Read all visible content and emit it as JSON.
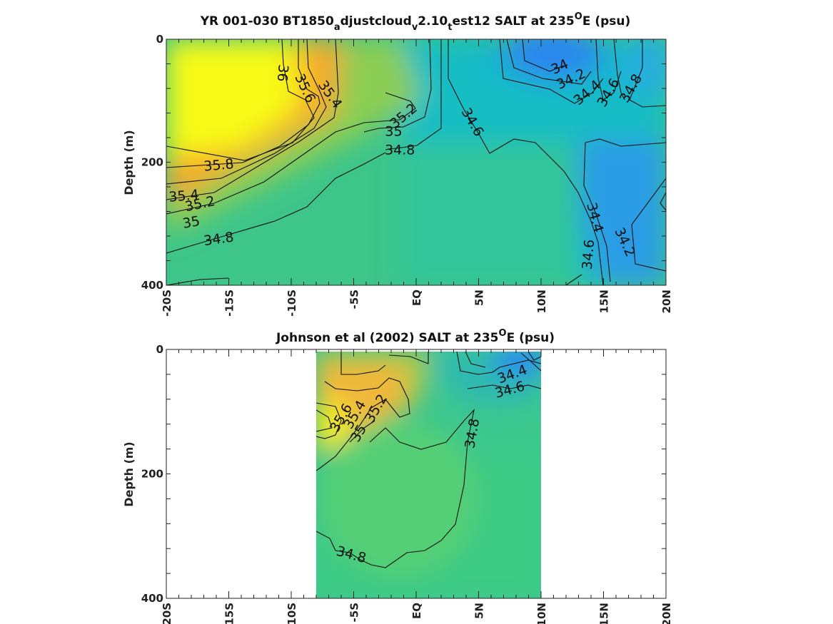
{
  "chart_data": [
    {
      "type": "contour",
      "title": {
        "prefix": "YR 001-030 BT1850",
        "sub1": "a",
        "mid1": "djustcloud",
        "sub2": "v",
        "mid2": "2.10",
        "sub3": "t",
        "mid3": "est12 SALT at 235",
        "sup": "O",
        "suffix": "E (psu)"
      },
      "ylabel": "Depth (m)",
      "xlim": [
        -20,
        20
      ],
      "ylim": [
        400,
        0
      ],
      "x_ticks": [
        -20,
        -15,
        -10,
        -5,
        0,
        5,
        10,
        15,
        20
      ],
      "x_tick_labels": [
        "-20S",
        "-15S",
        "-10S",
        "-5S",
        "EQ",
        "5N",
        "10N",
        "15N",
        "20N"
      ],
      "y_ticks": [
        0,
        200,
        400
      ],
      "y_tick_labels": [
        "0",
        "200",
        "400"
      ],
      "data_extent": [
        -20,
        20
      ],
      "contour_labels": [
        {
          "text": "36",
          "x": -10.7,
          "y": 55,
          "angle": 95
        },
        {
          "text": "35.6",
          "x": -8.9,
          "y": 80,
          "angle": 65
        },
        {
          "text": "35.4",
          "x": -6.9,
          "y": 90,
          "angle": 55
        },
        {
          "text": "35.2",
          "x": -1.0,
          "y": 125,
          "angle": -40
        },
        {
          "text": "35",
          "x": -1.8,
          "y": 150,
          "angle": 0
        },
        {
          "text": "34.8",
          "x": -1.3,
          "y": 180,
          "angle": 0
        },
        {
          "text": "34.6",
          "x": 4.5,
          "y": 135,
          "angle": 60
        },
        {
          "text": "34",
          "x": 11.5,
          "y": 45,
          "angle": -25
        },
        {
          "text": "34.2",
          "x": 12.4,
          "y": 65,
          "angle": -25
        },
        {
          "text": "34.4",
          "x": 13.7,
          "y": 87,
          "angle": -40
        },
        {
          "text": "34.6",
          "x": 15.4,
          "y": 87,
          "angle": -60
        },
        {
          "text": "34.8",
          "x": 17.2,
          "y": 80,
          "angle": -60
        },
        {
          "text": "35.8",
          "x": -15.8,
          "y": 205,
          "angle": -5
        },
        {
          "text": "35.4",
          "x": -18.6,
          "y": 255,
          "angle": -5
        },
        {
          "text": "35.2",
          "x": -17.3,
          "y": 268,
          "angle": -12
        },
        {
          "text": "35",
          "x": -18.0,
          "y": 298,
          "angle": -10
        },
        {
          "text": "34.8",
          "x": -15.8,
          "y": 325,
          "angle": -8
        },
        {
          "text": "34.4",
          "x": 14.3,
          "y": 290,
          "angle": 75
        },
        {
          "text": "34.6",
          "x": 13.8,
          "y": 350,
          "angle": -85
        },
        {
          "text": "34.2",
          "x": 16.7,
          "y": 330,
          "angle": 65
        }
      ]
    },
    {
      "type": "contour",
      "title": {
        "prefix": "Johnson et al (2002) SALT at 235",
        "sup": "O",
        "suffix": "E (psu)"
      },
      "ylabel": "Depth (m)",
      "xlim": [
        -20,
        20
      ],
      "ylim": [
        400,
        0
      ],
      "x_ticks": [
        -20,
        -15,
        -10,
        -5,
        0,
        5,
        10,
        15,
        20
      ],
      "x_tick_labels": [
        "-20S",
        "-15S",
        "-10S",
        "-5S",
        "EQ",
        "5N",
        "10N",
        "15N",
        "20N"
      ],
      "y_ticks": [
        0,
        200,
        400
      ],
      "y_tick_labels": [
        "0",
        "200",
        "400"
      ],
      "data_extent": [
        -8,
        10
      ],
      "contour_labels": [
        {
          "text": "34.4",
          "x": 7.7,
          "y": 40,
          "angle": -20
        },
        {
          "text": "34.6",
          "x": 7.5,
          "y": 65,
          "angle": -15
        },
        {
          "text": "34.8",
          "x": 4.5,
          "y": 135,
          "angle": -80
        },
        {
          "text": "35.6",
          "x": -6.0,
          "y": 110,
          "angle": -60
        },
        {
          "text": "35.4",
          "x": -4.9,
          "y": 105,
          "angle": -60
        },
        {
          "text": "35.2",
          "x": -3.2,
          "y": 95,
          "angle": -60
        },
        {
          "text": "35",
          "x": -4.6,
          "y": 135,
          "angle": -60
        },
        {
          "text": "34.8",
          "x": -5.2,
          "y": 330,
          "angle": 15
        }
      ]
    }
  ]
}
